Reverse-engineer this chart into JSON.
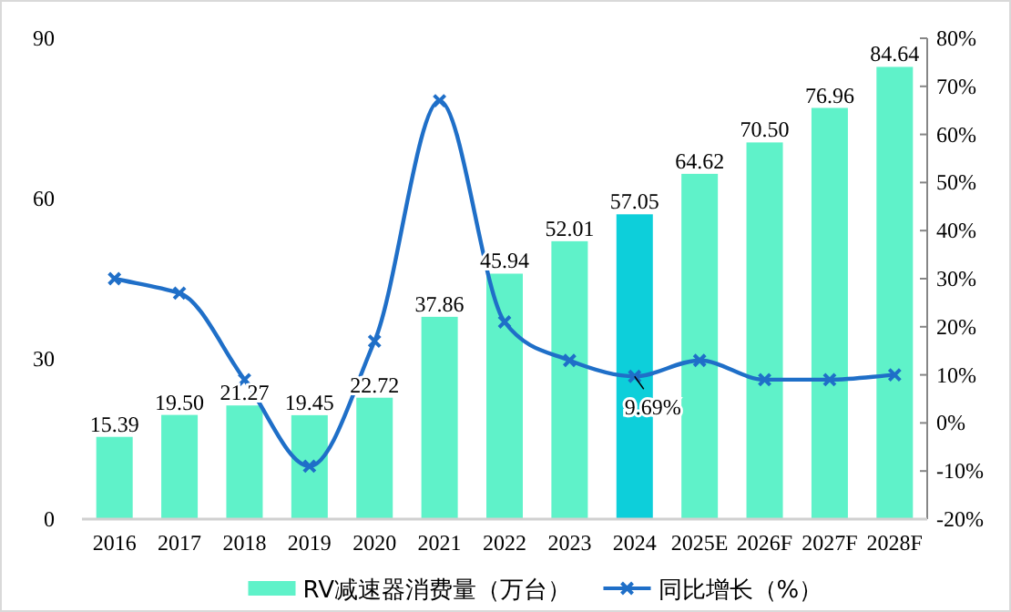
{
  "chart_data": {
    "type": "bar",
    "categories": [
      "2016",
      "2017",
      "2018",
      "2019",
      "2020",
      "2021",
      "2022",
      "2023",
      "2024",
      "2025E",
      "2026F",
      "2027F",
      "2028F"
    ],
    "series": [
      {
        "name": "RV减速器消费量（万台）",
        "color": "#5ff2c9",
        "colors": [
          "#5ff2c9",
          "#5ff2c9",
          "#5ff2c9",
          "#5ff2c9",
          "#5ff2c9",
          "#5ff2c9",
          "#5ff2c9",
          "#5ff2c9",
          "#0dcfda",
          "#5ff2c9",
          "#5ff2c9",
          "#5ff2c9",
          "#5ff2c9"
        ],
        "values": [
          15.39,
          19.5,
          21.27,
          19.45,
          22.72,
          37.86,
          45.94,
          52.01,
          57.05,
          64.62,
          70.5,
          76.96,
          84.64
        ],
        "value_labels": [
          "15.39",
          "19.50",
          "21.27",
          "19.45",
          "22.72",
          "37.86",
          "45.94",
          "52.01",
          "57.05",
          "64.62",
          "70.50",
          "76.96",
          "84.64"
        ]
      },
      {
        "name": "同比增长（%）",
        "type": "line",
        "axis": "y2",
        "color": "#1f6fc8",
        "marker": "cross",
        "values": [
          30,
          27,
          9,
          -9,
          17,
          67,
          21,
          13,
          9.69,
          13,
          9,
          9,
          10
        ],
        "value_labels": [
          null,
          null,
          null,
          null,
          null,
          null,
          null,
          null,
          "9.69%",
          null,
          null,
          null,
          null
        ]
      }
    ],
    "ylim": [
      0,
      90
    ],
    "yticks": [
      0,
      30,
      60,
      90
    ],
    "y2lim": [
      -20,
      80
    ],
    "y2ticks": [
      {
        "value": -20,
        "label": "-20%"
      },
      {
        "value": -10,
        "label": "-10%"
      },
      {
        "value": 0,
        "label": "0%"
      },
      {
        "value": 10,
        "label": "10%"
      },
      {
        "value": 20,
        "label": "20%"
      },
      {
        "value": 30,
        "label": "30%"
      },
      {
        "value": 40,
        "label": "40%"
      },
      {
        "value": 50,
        "label": "50%"
      },
      {
        "value": 60,
        "label": "60%"
      },
      {
        "value": 70,
        "label": "70%"
      },
      {
        "value": 80,
        "label": "80%"
      }
    ],
    "grid": false,
    "legend": "bottom"
  }
}
